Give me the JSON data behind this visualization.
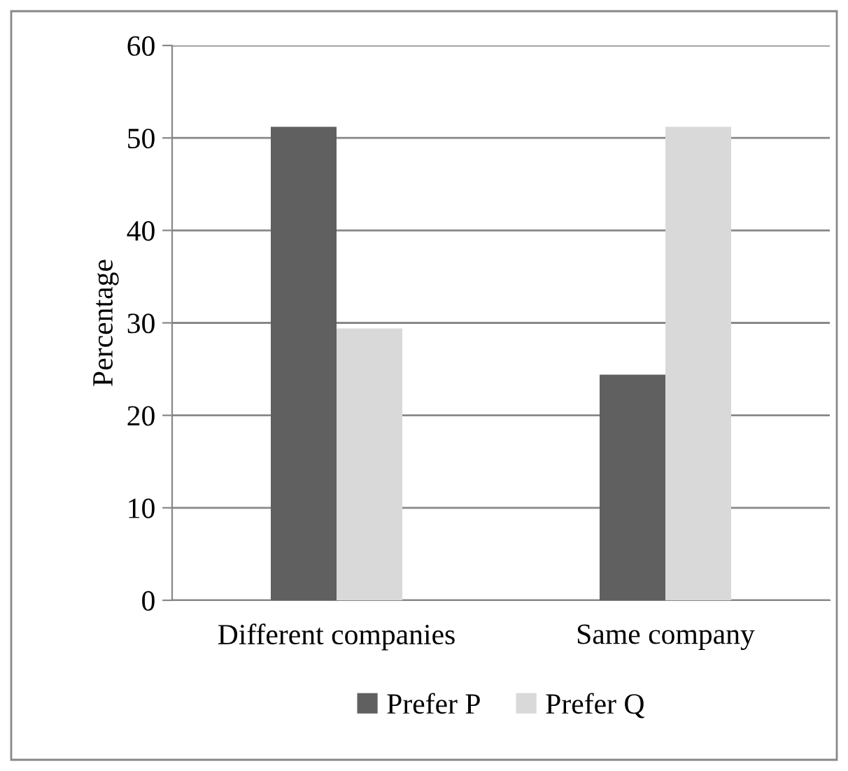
{
  "chart_data": {
    "type": "bar",
    "ylabel": "Percentage",
    "categories": [
      "Different companies",
      "Same company"
    ],
    "series": [
      {
        "name": "Prefer P",
        "color": "#606060",
        "values": [
          51.2,
          24.4
        ]
      },
      {
        "name": "Prefer Q",
        "color": "#d9d9d9",
        "values": [
          29.4,
          51.2
        ]
      }
    ],
    "ylim": [
      0,
      60
    ],
    "yticks": [
      0,
      10,
      20,
      30,
      40,
      50,
      60
    ],
    "grid": "y",
    "legend": "bottom"
  }
}
